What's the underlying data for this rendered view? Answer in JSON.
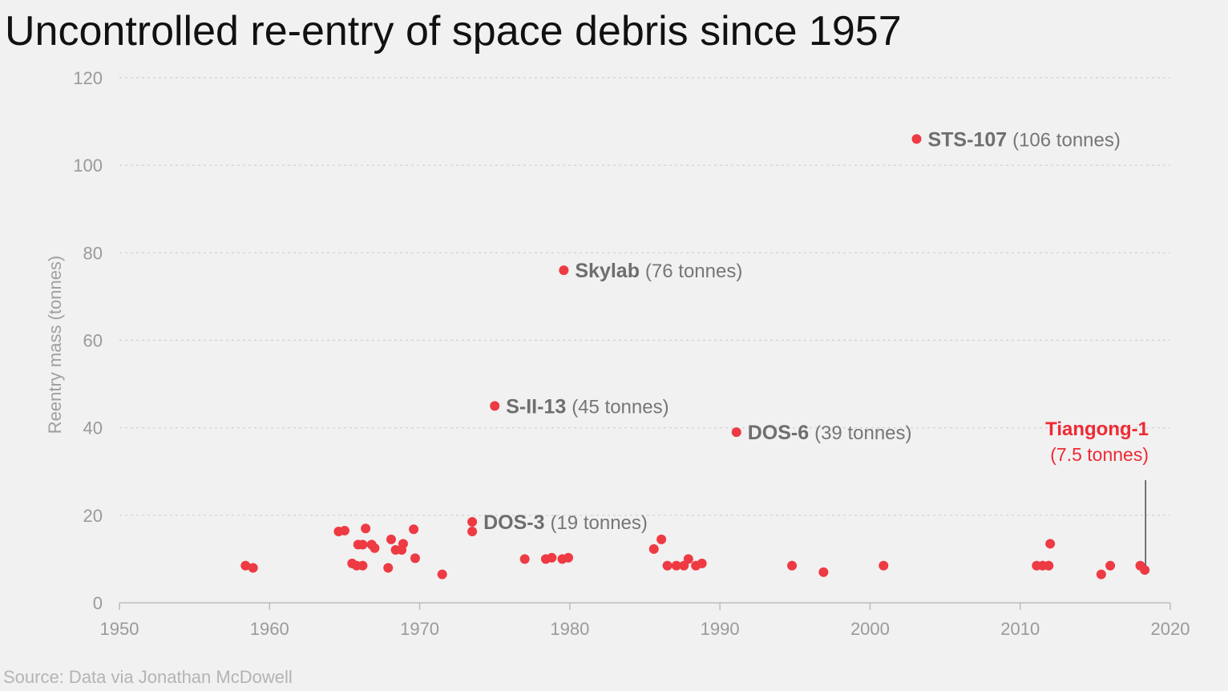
{
  "chart_data": {
    "type": "scatter",
    "title": "Uncontrolled re-entry of space debris since 1957",
    "xlabel": "",
    "ylabel": "Reentry mass (tonnes)",
    "xlim": [
      1950,
      2020
    ],
    "ylim": [
      0,
      120
    ],
    "xticks": [
      1950,
      1960,
      1970,
      1980,
      1990,
      2000,
      2010,
      2020
    ],
    "yticks": [
      0,
      20,
      40,
      60,
      80,
      100,
      120
    ],
    "grid": "horizontal-dashed",
    "source": "Source: Data via Jonathan McDowell",
    "point_color": "#ee3a43",
    "highlight_color": "#ee2a33",
    "points": [
      {
        "x": 1958.4,
        "y": 8.5
      },
      {
        "x": 1958.9,
        "y": 8.0
      },
      {
        "x": 1964.6,
        "y": 16.3
      },
      {
        "x": 1965.0,
        "y": 16.5
      },
      {
        "x": 1966.4,
        "y": 17.0
      },
      {
        "x": 1965.5,
        "y": 9.0
      },
      {
        "x": 1965.8,
        "y": 8.5
      },
      {
        "x": 1966.2,
        "y": 8.5
      },
      {
        "x": 1965.9,
        "y": 13.3
      },
      {
        "x": 1966.2,
        "y": 13.3
      },
      {
        "x": 1966.8,
        "y": 13.3
      },
      {
        "x": 1967.0,
        "y": 12.5
      },
      {
        "x": 1967.9,
        "y": 8.0
      },
      {
        "x": 1968.1,
        "y": 14.5
      },
      {
        "x": 1968.4,
        "y": 12.1
      },
      {
        "x": 1968.8,
        "y": 12.1
      },
      {
        "x": 1968.9,
        "y": 13.5
      },
      {
        "x": 1969.6,
        "y": 16.8
      },
      {
        "x": 1969.7,
        "y": 10.2
      },
      {
        "x": 1971.5,
        "y": 6.5
      },
      {
        "x": 1973.5,
        "y": 18.5
      },
      {
        "x": 1973.5,
        "y": 16.3
      },
      {
        "x": 1975.0,
        "y": 45.0
      },
      {
        "x": 1977.0,
        "y": 10.0
      },
      {
        "x": 1978.4,
        "y": 10.0
      },
      {
        "x": 1978.8,
        "y": 10.3
      },
      {
        "x": 1979.5,
        "y": 10.0
      },
      {
        "x": 1979.9,
        "y": 10.3
      },
      {
        "x": 1979.6,
        "y": 76.0
      },
      {
        "x": 1985.6,
        "y": 12.3
      },
      {
        "x": 1986.1,
        "y": 14.5
      },
      {
        "x": 1986.5,
        "y": 8.5
      },
      {
        "x": 1987.1,
        "y": 8.5
      },
      {
        "x": 1987.6,
        "y": 8.5
      },
      {
        "x": 1987.9,
        "y": 10.0
      },
      {
        "x": 1988.4,
        "y": 8.5
      },
      {
        "x": 1988.8,
        "y": 9.0
      },
      {
        "x": 1991.1,
        "y": 39.0
      },
      {
        "x": 1994.8,
        "y": 8.5
      },
      {
        "x": 1996.9,
        "y": 7.0
      },
      {
        "x": 2000.9,
        "y": 8.5
      },
      {
        "x": 2003.1,
        "y": 106.0
      },
      {
        "x": 2011.1,
        "y": 8.5
      },
      {
        "x": 2011.5,
        "y": 8.5
      },
      {
        "x": 2011.9,
        "y": 8.5
      },
      {
        "x": 2012.0,
        "y": 13.5
      },
      {
        "x": 2015.4,
        "y": 6.5
      },
      {
        "x": 2016.0,
        "y": 8.5
      },
      {
        "x": 2018.0,
        "y": 8.5
      },
      {
        "x": 2018.3,
        "y": 7.5
      }
    ],
    "annotations": [
      {
        "name": "STS-107",
        "mass": "(106 tonnes)",
        "x": 2003.1,
        "y": 106
      },
      {
        "name": "Skylab",
        "mass": "(76 tonnes)",
        "x": 1979.6,
        "y": 76
      },
      {
        "name": "S-II-13",
        "mass": "(45 tonnes)",
        "x": 1975.0,
        "y": 45
      },
      {
        "name": "DOS-6",
        "mass": "(39 tonnes)",
        "x": 1991.1,
        "y": 39
      },
      {
        "name": "DOS-3",
        "mass": "(19 tonnes)",
        "x": 1973.5,
        "y": 18.5
      }
    ],
    "highlight": {
      "name": "Tiangong-1",
      "mass": "(7.5 tonnes)",
      "x": 2018.3,
      "y": 7.5
    }
  }
}
